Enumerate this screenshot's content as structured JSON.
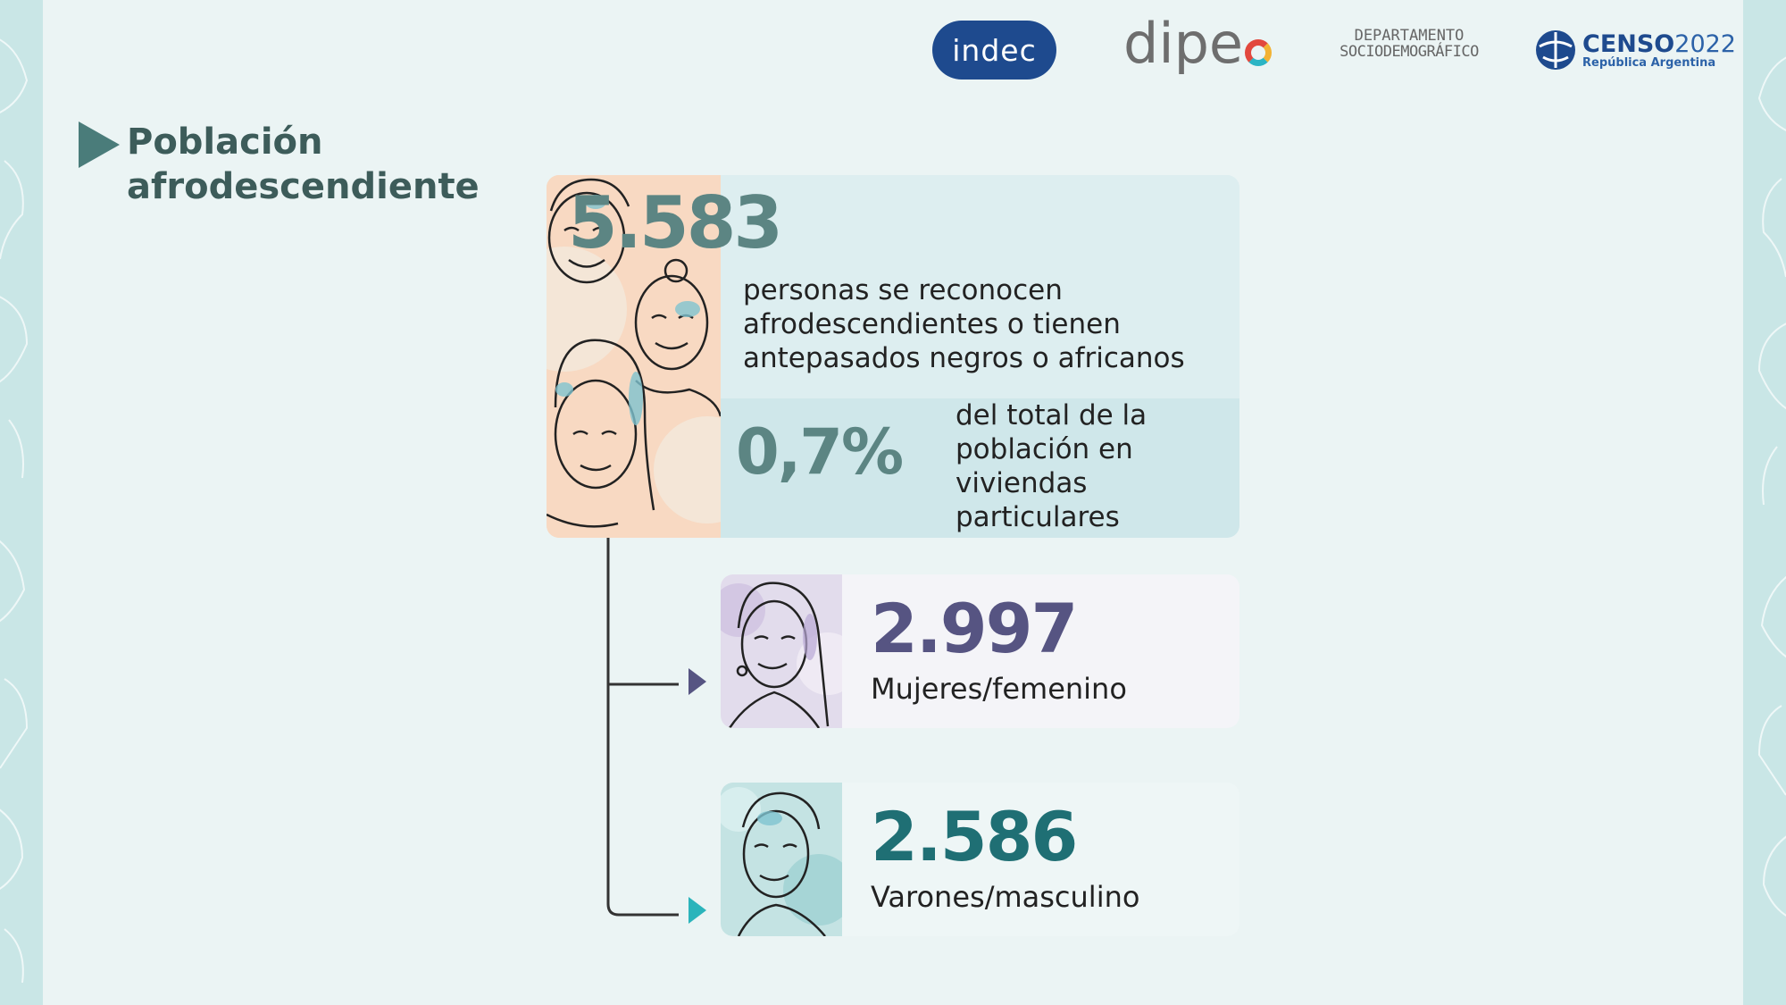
{
  "logos": {
    "indec": "indec",
    "dipec": "dipe",
    "departamento_line1": "DEPARTAMENTO",
    "departamento_line2": "SOCIODEMOGRÁFICO",
    "censo_main": "CENSO",
    "censo_year": "2022",
    "censo_sub": "República Argentina"
  },
  "header": {
    "title_line1": "Población",
    "title_line2": "afrodescendiente"
  },
  "main": {
    "total": "5.583",
    "total_desc": "personas se reconocen afrodescendientes o tienen antepasados negros o africanos",
    "percent": "0,7%",
    "percent_desc": "del total de la población en viviendas particulares"
  },
  "women": {
    "count": "2.997",
    "label": "Mujeres/femenino"
  },
  "men": {
    "count": "2.586",
    "label": "Varones/masculino"
  },
  "colors": {
    "title": "#3d5c5a",
    "main_number": "#5c8583",
    "women_number": "#565482",
    "men_number": "#1f6f74",
    "men_arrow": "#2bb4bb"
  },
  "icons": {
    "title_arrow": "triangle-right-icon",
    "women_arrow": "triangle-right-icon",
    "men_arrow": "triangle-right-icon"
  }
}
